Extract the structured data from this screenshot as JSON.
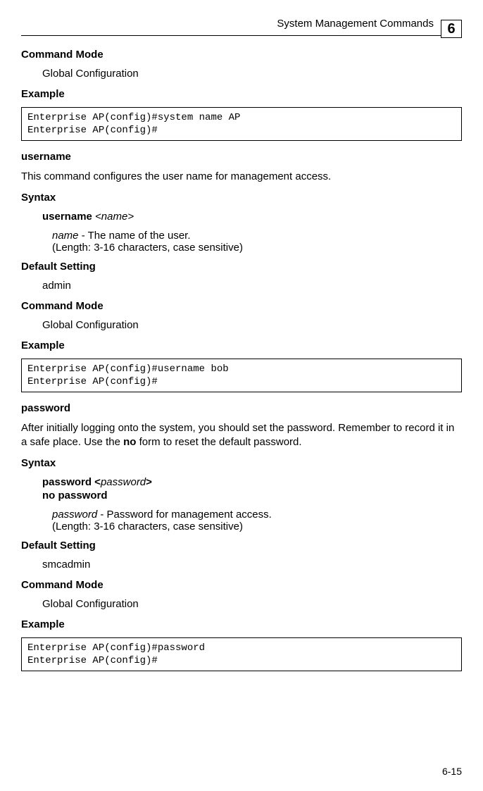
{
  "header": {
    "title": "System Management Commands",
    "chapter": "6"
  },
  "s1": {
    "h1": "Command Mode",
    "t1": "Global Configuration",
    "h2": "Example",
    "code": "Enterprise AP(config)#system name AP\nEnterprise AP(config)#"
  },
  "s2": {
    "cmd": "username",
    "desc": "This command configures the user name for management access.",
    "h_syntax": "Syntax",
    "syn_bold": "username",
    "syn_ital": "<name>",
    "param_ital": "name",
    "param_rest": " - The name of the user.",
    "param_len": "(Length: 3-16 characters, case sensitive)",
    "h_def": "Default Setting",
    "def_val": "admin",
    "h_mode": "Command Mode",
    "mode_val": "Global Configuration",
    "h_ex": "Example",
    "code": "Enterprise AP(config)#username bob\nEnterprise AP(config)#"
  },
  "s3": {
    "cmd": "password",
    "desc1": "After initially logging onto the system, you should set the password. Remember to record it in a safe place. Use the ",
    "desc_bold": "no",
    "desc2": " form to reset the default password.",
    "h_syntax": "Syntax",
    "syn1_bold": "password <",
    "syn1_ital": "password",
    "syn1_bold2": ">",
    "syn2": "no password",
    "param_ital": "password",
    "param_rest": " - Password for management access.",
    "param_len": "(Length: 3-16 characters, case sensitive)",
    "h_def": "Default Setting",
    "def_val": "smcadmin",
    "h_mode": "Command Mode",
    "mode_val": "Global Configuration",
    "h_ex": "Example",
    "code": "Enterprise AP(config)#password\nEnterprise AP(config)#"
  },
  "page_num": "6-15"
}
